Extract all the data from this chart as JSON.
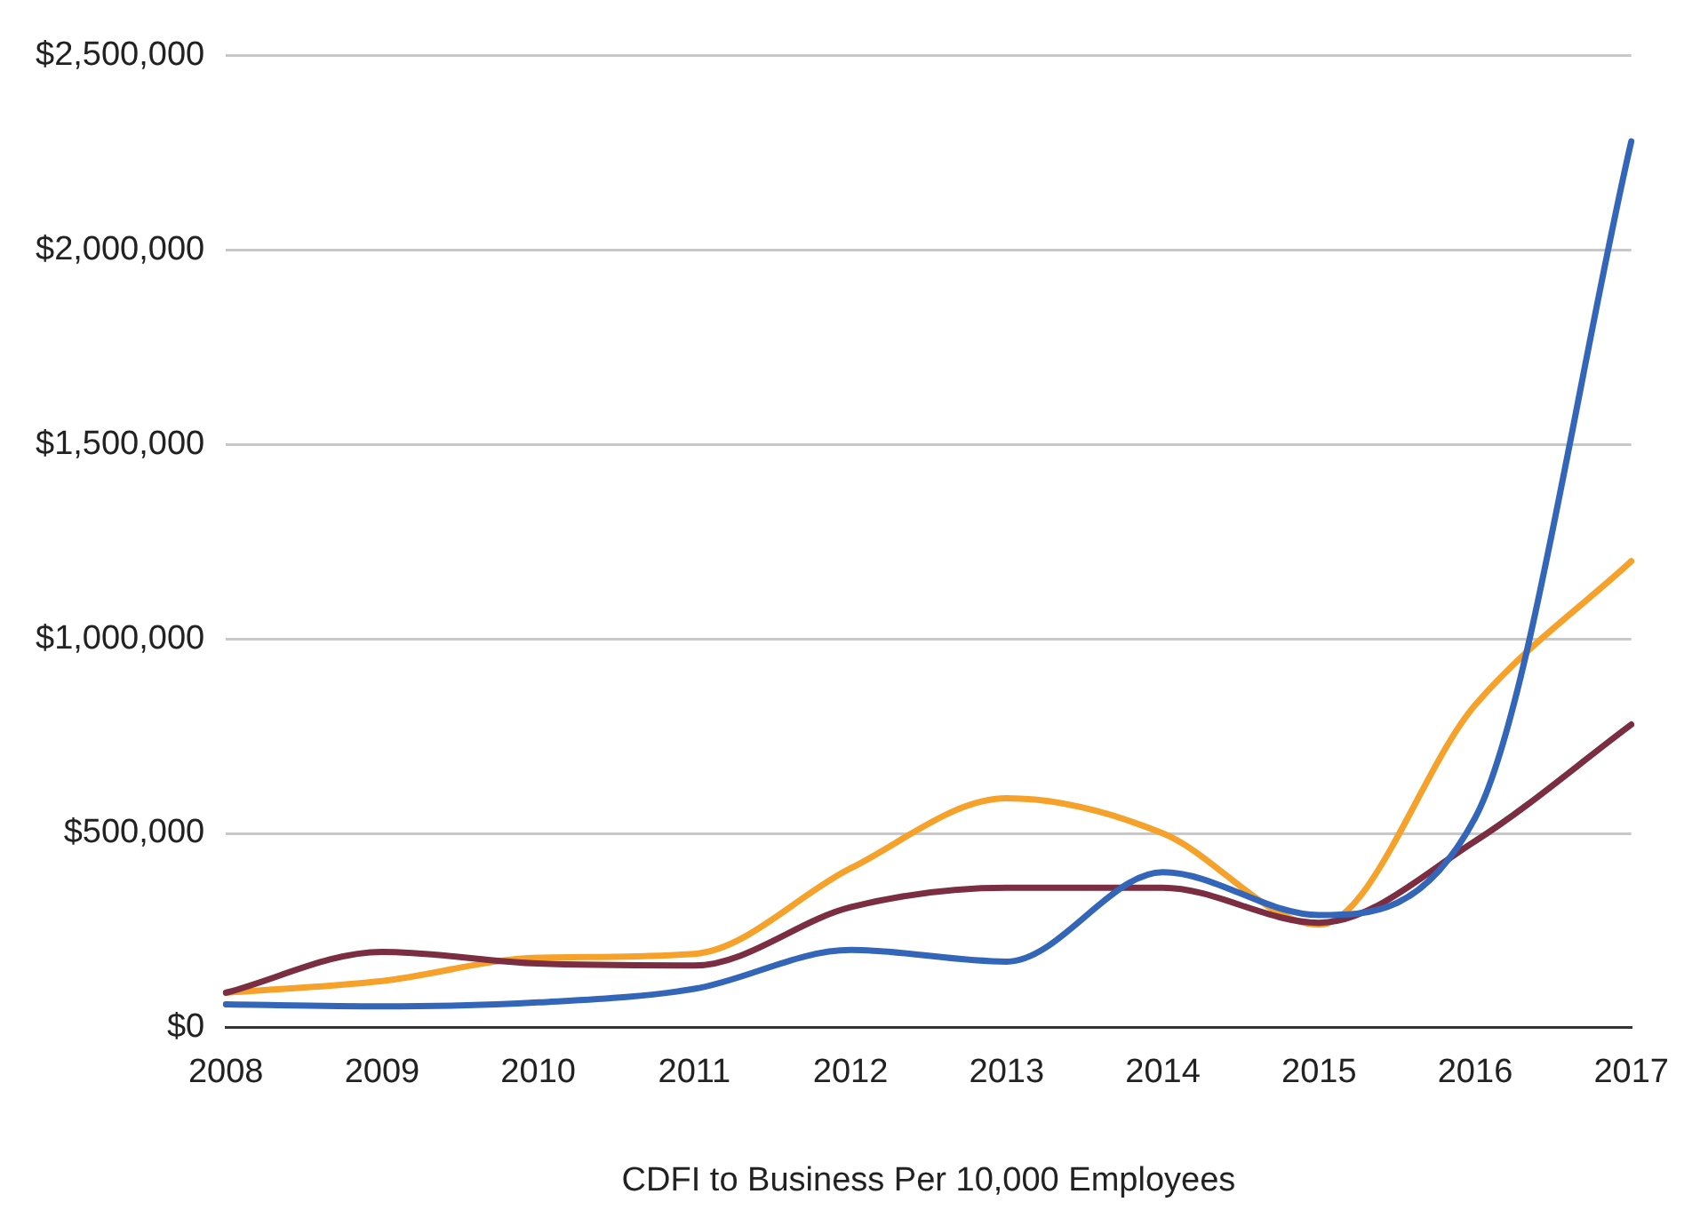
{
  "chart_data": {
    "type": "line",
    "xlabel": "CDFI to Business Per 10,000 Employees",
    "categories": [
      "2008",
      "2009",
      "2010",
      "2011",
      "2012",
      "2013",
      "2014",
      "2015",
      "2016",
      "2017"
    ],
    "series": [
      {
        "color": "#3366b8",
        "values": [
          60000,
          55000,
          65000,
          100000,
          200000,
          170000,
          400000,
          290000,
          540000,
          2280000
        ]
      },
      {
        "color": "#7b2d42",
        "values": [
          90000,
          195000,
          165000,
          160000,
          310000,
          360000,
          360000,
          270000,
          480000,
          780000
        ]
      },
      {
        "color": "#f6a12a",
        "values": [
          90000,
          120000,
          180000,
          190000,
          410000,
          590000,
          500000,
          265000,
          830000,
          1200000
        ]
      }
    ],
    "ylim": [
      0,
      2500000
    ],
    "yticks": [
      {
        "value": 0,
        "label": "$0"
      },
      {
        "value": 500000,
        "label": "$500,000"
      },
      {
        "value": 1000000,
        "label": "$1,000,000"
      },
      {
        "value": 1500000,
        "label": "$1,500,000"
      },
      {
        "value": 2000000,
        "label": "$2,000,000"
      },
      {
        "value": 2500000,
        "label": "$2,500,000"
      }
    ],
    "grid": "y",
    "legend": false,
    "marker": "none",
    "line_style": "solid"
  }
}
